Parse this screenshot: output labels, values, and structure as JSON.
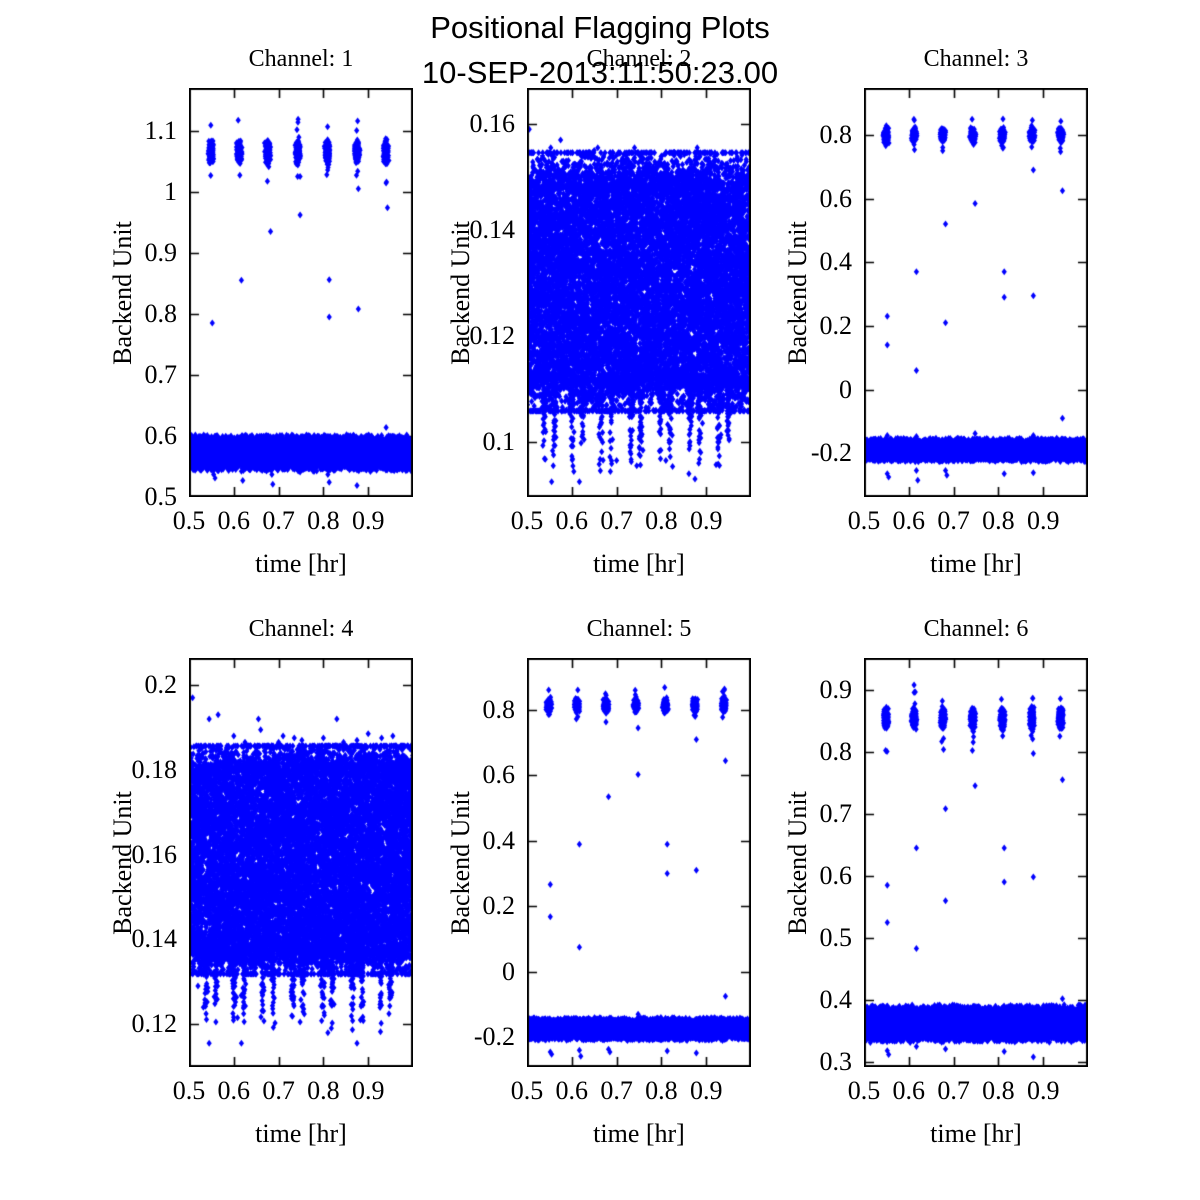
{
  "figure": {
    "suptitle_line1": "Positional Flagging Plots",
    "suptitle_line2": "10-SEP-2013:11:50:23.00",
    "background": "#ffffff",
    "marker_color": "#0000ff",
    "axis_color": "#000000"
  },
  "chart_data": [
    {
      "type": "scatter",
      "title": "Channel: 1",
      "xlabel": "time [hr]",
      "ylabel": "Backend Unit",
      "xlim": [
        0.5,
        1.0
      ],
      "ylim": [
        0.5,
        1.17
      ],
      "xticks": [
        0.5,
        0.6,
        0.7,
        0.8,
        0.9
      ],
      "xtick_labels": [
        "0.5",
        "0.6",
        "0.7",
        "0.8",
        "0.9"
      ],
      "yticks": [
        0.5,
        0.6,
        0.7,
        0.8,
        0.9,
        1.0,
        1.1
      ],
      "ytick_labels": [
        "0.5",
        "0.6",
        "0.7",
        "0.8",
        "0.9",
        "1",
        "1.1"
      ],
      "grid": false,
      "marker": "diamond",
      "components": [
        {
          "kind": "clusters",
          "x_positions": [
            0.549,
            0.612,
            0.676,
            0.743,
            0.809,
            0.875,
            0.939
          ],
          "y_center": 1.065,
          "y_halfwidth": 0.013,
          "count_per": 420
        },
        {
          "kind": "band",
          "y_center": 0.572,
          "y_halfwidth": 0.026,
          "count": 9000
        }
      ],
      "outliers": [
        [
          0.552,
          0.785
        ],
        [
          0.617,
          0.855
        ],
        [
          0.682,
          0.935
        ],
        [
          0.748,
          1.025
        ],
        [
          0.748,
          0.962
        ],
        [
          0.813,
          0.856
        ],
        [
          0.813,
          0.795
        ],
        [
          0.878,
          1.005
        ],
        [
          0.878,
          0.808
        ],
        [
          0.943,
          0.974
        ],
        [
          0.555,
          0.537
        ],
        [
          0.558,
          0.531
        ],
        [
          0.617,
          0.542
        ],
        [
          0.62,
          0.527
        ],
        [
          0.685,
          0.537
        ],
        [
          0.687,
          0.521
        ],
        [
          0.748,
          0.541
        ],
        [
          0.81,
          0.537
        ],
        [
          0.813,
          0.524
        ],
        [
          0.875,
          0.519
        ],
        [
          0.94,
          0.614
        ]
      ]
    },
    {
      "type": "scatter",
      "title": "Channel: 2",
      "xlabel": "time [hr]",
      "ylabel": "Backend Unit",
      "xlim": [
        0.5,
        1.0
      ],
      "ylim": [
        0.0896,
        0.1668
      ],
      "xticks": [
        0.5,
        0.6,
        0.7,
        0.8,
        0.9
      ],
      "xtick_labels": [
        "0.5",
        "0.6",
        "0.7",
        "0.8",
        "0.9"
      ],
      "yticks": [
        0.1,
        0.12,
        0.14,
        0.16
      ],
      "ytick_labels": [
        "0.1",
        "0.12",
        "0.14",
        "0.16"
      ],
      "grid": false,
      "marker": "diamond",
      "components": [
        {
          "kind": "block",
          "y_low": 0.112,
          "y_high": 0.148,
          "count": 13000,
          "upper_tail": 0.003,
          "lower_tail": 0.0028,
          "upper_frac": 0.1,
          "lower_frac": 0.1
        },
        {
          "kind": "drips",
          "x_positions": [
            0.549,
            0.612,
            0.676,
            0.743,
            0.809,
            0.875,
            0.939
          ],
          "pair_offset": 0.011,
          "y_base": 0.1125,
          "depth": 0.019,
          "count_per": 55
        }
      ],
      "outliers": [
        [
          0.505,
          0.159
        ],
        [
          0.553,
          0.1555
        ],
        [
          0.575,
          0.157
        ],
        [
          0.62,
          0.1525
        ],
        [
          0.643,
          0.1535
        ],
        [
          0.65,
          0.155
        ],
        [
          0.658,
          0.1555
        ],
        [
          0.7,
          0.1525
        ],
        [
          0.707,
          0.1545
        ],
        [
          0.74,
          0.1555
        ],
        [
          0.78,
          0.151
        ],
        [
          0.802,
          0.1505
        ],
        [
          0.88,
          0.1555
        ],
        [
          0.92,
          0.1515
        ],
        [
          0.952,
          0.1505
        ],
        [
          0.555,
          0.0925
        ],
        [
          0.617,
          0.0925
        ],
        [
          0.7,
          0.0965
        ],
        [
          0.745,
          0.0955
        ],
        [
          0.81,
          0.0965
        ],
        [
          0.875,
          0.093
        ]
      ]
    },
    {
      "type": "scatter",
      "title": "Channel: 3",
      "xlabel": "time [hr]",
      "ylabel": "Backend Unit",
      "xlim": [
        0.5,
        1.0
      ],
      "ylim": [
        -0.338,
        0.948
      ],
      "xticks": [
        0.5,
        0.6,
        0.7,
        0.8,
        0.9
      ],
      "xtick_labels": [
        "0.5",
        "0.6",
        "0.7",
        "0.8",
        "0.9"
      ],
      "yticks": [
        -0.2,
        0.0,
        0.2,
        0.4,
        0.6,
        0.8
      ],
      "ytick_labels": [
        "-0.2",
        "0",
        "0.2",
        "0.4",
        "0.6",
        "0.8"
      ],
      "grid": false,
      "marker": "diamond",
      "components": [
        {
          "kind": "clusters",
          "x_positions": [
            0.549,
            0.612,
            0.676,
            0.743,
            0.809,
            0.875,
            0.939
          ],
          "y_center": 0.8,
          "y_halfwidth": 0.014,
          "count_per": 420
        },
        {
          "kind": "band",
          "y_center": -0.19,
          "y_halfwidth": 0.032,
          "count": 8500
        }
      ],
      "outliers": [
        [
          0.552,
          0.23
        ],
        [
          0.552,
          0.14
        ],
        [
          0.617,
          0.37
        ],
        [
          0.617,
          0.06
        ],
        [
          0.682,
          0.52
        ],
        [
          0.682,
          0.21
        ],
        [
          0.748,
          0.585
        ],
        [
          0.813,
          0.37
        ],
        [
          0.813,
          0.29
        ],
        [
          0.878,
          0.69
        ],
        [
          0.878,
          0.295
        ],
        [
          0.943,
          0.625
        ],
        [
          0.943,
          -0.09
        ],
        [
          0.552,
          -0.145
        ],
        [
          0.617,
          -0.148
        ],
        [
          0.748,
          -0.138
        ],
        [
          0.878,
          -0.145
        ],
        [
          0.552,
          -0.265
        ],
        [
          0.555,
          -0.275
        ],
        [
          0.617,
          -0.255
        ],
        [
          0.62,
          -0.285
        ],
        [
          0.682,
          -0.255
        ],
        [
          0.685,
          -0.27
        ],
        [
          0.813,
          -0.265
        ],
        [
          0.878,
          -0.262
        ]
      ]
    },
    {
      "type": "scatter",
      "title": "Channel: 4",
      "xlabel": "time [hr]",
      "ylabel": "Backend Unit",
      "xlim": [
        0.5,
        1.0
      ],
      "ylim": [
        0.1099,
        0.2064
      ],
      "xticks": [
        0.5,
        0.6,
        0.7,
        0.8,
        0.9
      ],
      "xtick_labels": [
        "0.5",
        "0.6",
        "0.7",
        "0.8",
        "0.9"
      ],
      "yticks": [
        0.12,
        0.14,
        0.16,
        0.18,
        0.2
      ],
      "ytick_labels": [
        "0.12",
        "0.14",
        "0.16",
        "0.18",
        "0.2"
      ],
      "grid": false,
      "marker": "diamond",
      "components": [
        {
          "kind": "block",
          "y_low": 0.138,
          "y_high": 0.1795,
          "count": 13000,
          "upper_tail": 0.0028,
          "lower_tail": 0.0028,
          "upper_frac": 0.1,
          "lower_frac": 0.1
        },
        {
          "kind": "drips",
          "x_positions": [
            0.549,
            0.612,
            0.676,
            0.743,
            0.809,
            0.875,
            0.939
          ],
          "pair_offset": 0.011,
          "y_base": 0.1385,
          "depth": 0.021,
          "count_per": 55
        }
      ],
      "outliers": [
        [
          0.508,
          0.197
        ],
        [
          0.545,
          0.192
        ],
        [
          0.565,
          0.193
        ],
        [
          0.6,
          0.188
        ],
        [
          0.625,
          0.1865
        ],
        [
          0.655,
          0.192
        ],
        [
          0.66,
          0.1895
        ],
        [
          0.7,
          0.1865
        ],
        [
          0.71,
          0.188
        ],
        [
          0.735,
          0.1875
        ],
        [
          0.752,
          0.187
        ],
        [
          0.775,
          0.1845
        ],
        [
          0.8,
          0.1875
        ],
        [
          0.83,
          0.192
        ],
        [
          0.845,
          0.1865
        ],
        [
          0.875,
          0.187
        ],
        [
          0.9,
          0.1885
        ],
        [
          0.93,
          0.1875
        ],
        [
          0.955,
          0.188
        ],
        [
          0.545,
          0.1155
        ],
        [
          0.617,
          0.1155
        ],
        [
          0.875,
          0.1155
        ],
        [
          0.52,
          0.129
        ],
        [
          0.748,
          0.1205
        ],
        [
          0.81,
          0.118
        ]
      ]
    },
    {
      "type": "scatter",
      "title": "Channel: 5",
      "xlabel": "time [hr]",
      "ylabel": "Backend Unit",
      "xlim": [
        0.5,
        1.0
      ],
      "ylim": [
        -0.291,
        0.959
      ],
      "xticks": [
        0.5,
        0.6,
        0.7,
        0.8,
        0.9
      ],
      "xtick_labels": [
        "0.5",
        "0.6",
        "0.7",
        "0.8",
        "0.9"
      ],
      "yticks": [
        -0.2,
        0.0,
        0.2,
        0.4,
        0.6,
        0.8
      ],
      "ytick_labels": [
        "-0.2",
        "0",
        "0.2",
        "0.4",
        "0.6",
        "0.8"
      ],
      "grid": false,
      "marker": "diamond",
      "components": [
        {
          "kind": "clusters",
          "x_positions": [
            0.549,
            0.612,
            0.676,
            0.743,
            0.809,
            0.875,
            0.939
          ],
          "y_center": 0.815,
          "y_halfwidth": 0.013,
          "count_per": 420
        },
        {
          "kind": "band",
          "y_center": -0.175,
          "y_halfwidth": 0.03,
          "count": 8500
        }
      ],
      "outliers": [
        [
          0.552,
          0.267
        ],
        [
          0.552,
          0.168
        ],
        [
          0.617,
          0.39
        ],
        [
          0.617,
          0.075
        ],
        [
          0.682,
          0.535
        ],
        [
          0.748,
          0.603
        ],
        [
          0.748,
          0.745
        ],
        [
          0.813,
          0.39
        ],
        [
          0.813,
          0.3
        ],
        [
          0.878,
          0.31
        ],
        [
          0.878,
          0.71
        ],
        [
          0.943,
          0.645
        ],
        [
          0.943,
          -0.075
        ],
        [
          0.748,
          -0.13
        ],
        [
          0.552,
          -0.245
        ],
        [
          0.555,
          -0.252
        ],
        [
          0.617,
          -0.24
        ],
        [
          0.62,
          -0.258
        ],
        [
          0.682,
          -0.237
        ],
        [
          0.685,
          -0.245
        ],
        [
          0.813,
          -0.242
        ],
        [
          0.878,
          -0.248
        ]
      ]
    },
    {
      "type": "scatter",
      "title": "Channel: 6",
      "xlabel": "time [hr]",
      "ylabel": "Backend Unit",
      "xlim": [
        0.5,
        1.0
      ],
      "ylim": [
        0.292,
        0.951
      ],
      "xticks": [
        0.5,
        0.6,
        0.7,
        0.8,
        0.9
      ],
      "xtick_labels": [
        "0.5",
        "0.6",
        "0.7",
        "0.8",
        "0.9"
      ],
      "yticks": [
        0.3,
        0.4,
        0.5,
        0.6,
        0.7,
        0.8,
        0.9
      ],
      "ytick_labels": [
        "0.3",
        "0.4",
        "0.5",
        "0.6",
        "0.7",
        "0.8",
        "0.9"
      ],
      "grid": false,
      "marker": "diamond",
      "components": [
        {
          "kind": "clusters",
          "x_positions": [
            0.549,
            0.612,
            0.676,
            0.743,
            0.809,
            0.875,
            0.939
          ],
          "y_center": 0.854,
          "y_halfwidth": 0.011,
          "count_per": 420
        },
        {
          "kind": "band",
          "y_center": 0.362,
          "y_halfwidth": 0.026,
          "count": 8500
        }
      ],
      "outliers": [
        [
          0.552,
          0.585
        ],
        [
          0.552,
          0.525
        ],
        [
          0.617,
          0.645
        ],
        [
          0.617,
          0.483
        ],
        [
          0.682,
          0.708
        ],
        [
          0.682,
          0.56
        ],
        [
          0.748,
          0.745
        ],
        [
          0.813,
          0.645
        ],
        [
          0.813,
          0.59
        ],
        [
          0.878,
          0.797
        ],
        [
          0.878,
          0.598
        ],
        [
          0.943,
          0.755
        ],
        [
          0.943,
          0.402
        ],
        [
          0.552,
          0.318
        ],
        [
          0.555,
          0.312
        ],
        [
          0.617,
          0.325
        ],
        [
          0.682,
          0.321
        ],
        [
          0.813,
          0.317
        ],
        [
          0.878,
          0.308
        ]
      ]
    }
  ]
}
